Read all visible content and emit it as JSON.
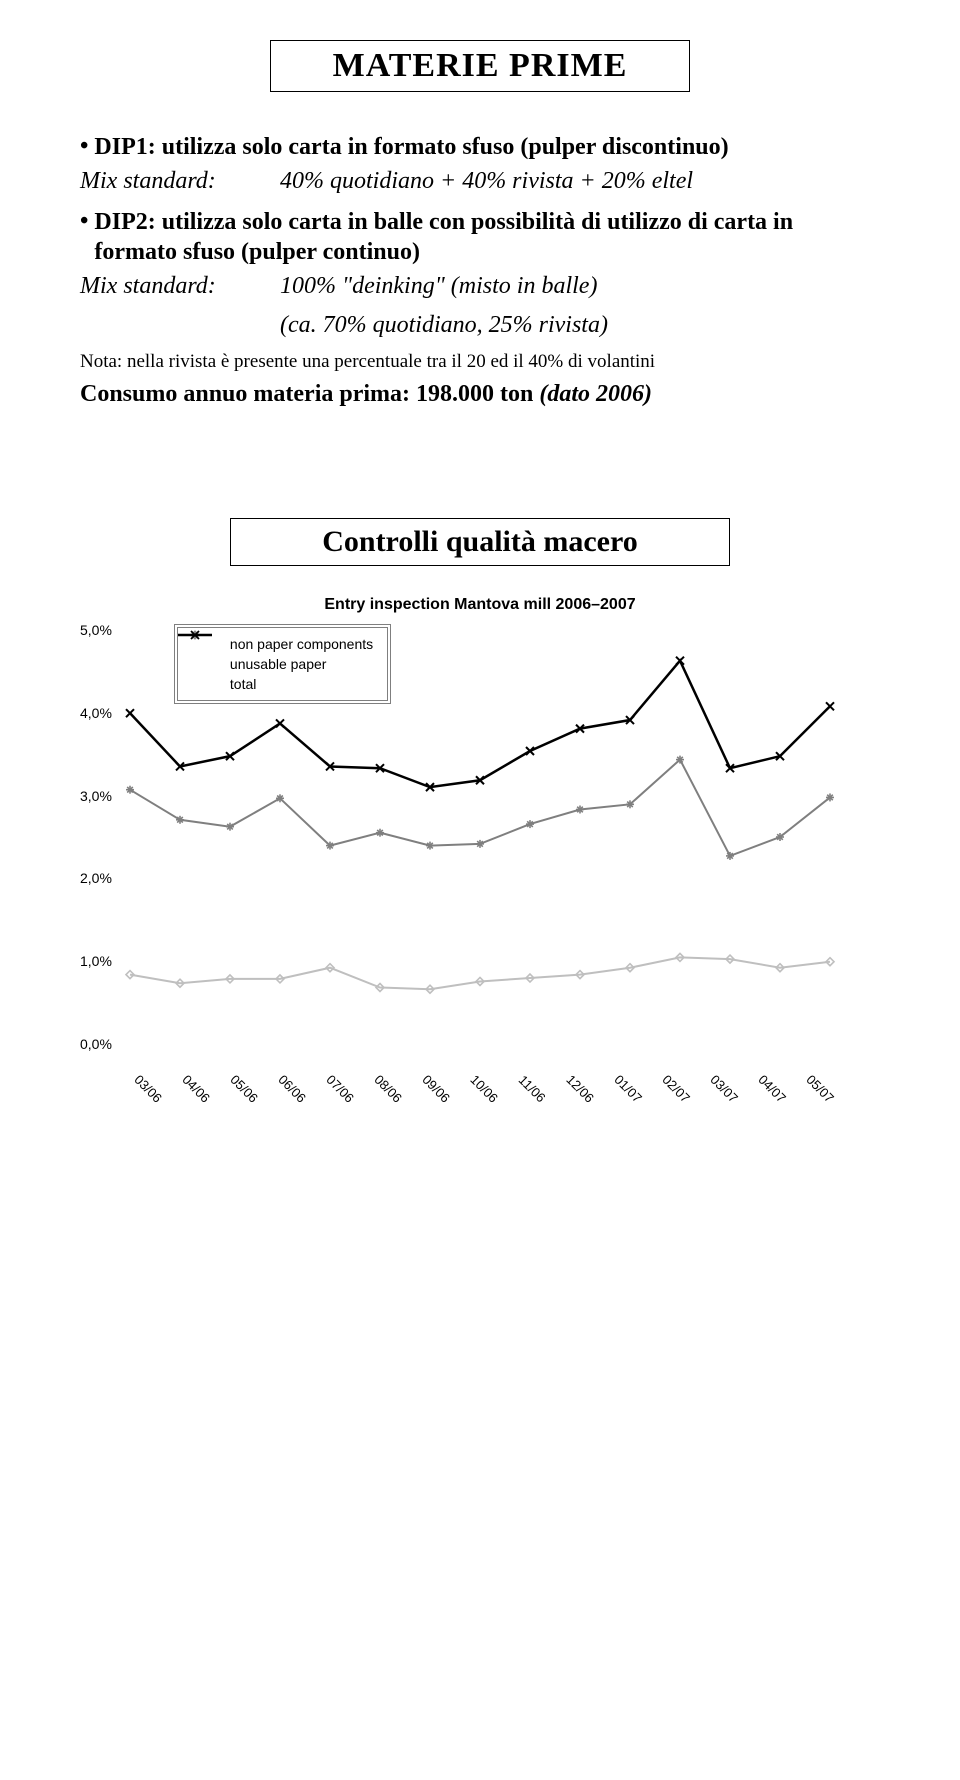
{
  "page_title": "MATERIE PRIME",
  "bullet1_label": "DIP1:",
  "bullet1_text": "utilizza solo carta in formato sfuso (pulper discontinuo)",
  "mix1_label": "Mix standard:",
  "mix1_value": "40% quotidiano + 40% rivista + 20% eltel",
  "bullet2_label": "DIP2:",
  "bullet2_text": "utilizza solo carta in balle con possibilità di utilizzo di carta in formato sfuso (pulper continuo)",
  "mix2_label": "Mix standard:",
  "mix2_value": "100% \"deinking\" (misto in balle)",
  "mix2_sub": "(ca. 70% quotidiano, 25% rivista)",
  "nota": "Nota: nella rivista è presente una percentuale tra il 20 ed il 40% di volantini",
  "consumo_prefix": "Consumo annuo materia prima: 198.000 ton",
  "consumo_ital": " (dato 2006)",
  "subtitle": "Controlli qualità macero",
  "chart": {
    "title": "Entry inspection Mantova mill 2006–2007",
    "legend": {
      "s1": "non paper components",
      "s2": "unusable paper",
      "s3": "total"
    },
    "colors": {
      "s1": "#bfbfbf",
      "s2": "#7f7f7f",
      "s3": "#000000",
      "grid": "#000000",
      "bg": "#ffffff"
    },
    "font_size_axis": 14,
    "line_width": {
      "s1": 2,
      "s2": 2,
      "s3": 2.5
    },
    "marker_size": 8,
    "y_min": 0.0,
    "y_max": 5.0,
    "y_step": 1.0,
    "y_ticks": [
      "5,0%",
      "4,0%",
      "3,0%",
      "2,0%",
      "1,0%",
      "0,0%"
    ],
    "categories": [
      "03/06",
      "04/06",
      "05/06",
      "06/06",
      "07/06",
      "08/06",
      "09/06",
      "10/06",
      "11/06",
      "12/06",
      "01/07",
      "02/07",
      "03/07",
      "04/07",
      "05/07"
    ],
    "series": {
      "s1": [
        0.9,
        0.8,
        0.85,
        0.85,
        0.98,
        0.75,
        0.73,
        0.82,
        0.86,
        0.9,
        0.98,
        1.1,
        1.08,
        0.98,
        1.05
      ],
      "s2": [
        3.05,
        2.7,
        2.62,
        2.95,
        2.4,
        2.55,
        2.4,
        2.42,
        2.65,
        2.82,
        2.88,
        3.4,
        2.28,
        2.5,
        2.96
      ],
      "s3": [
        3.94,
        3.32,
        3.44,
        3.82,
        3.32,
        3.3,
        3.08,
        3.16,
        3.5,
        3.76,
        3.86,
        4.55,
        3.3,
        3.44,
        4.02
      ]
    }
  }
}
